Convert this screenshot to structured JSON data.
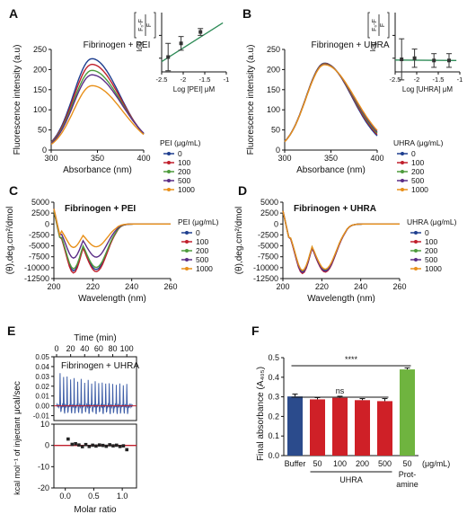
{
  "chart_data": [
    {
      "panel": "A",
      "type": "line",
      "title": "Fibrinogen + PEI",
      "xlabel": "Absorbance (nm)",
      "ylabel": "Fluorescence intensity (a.u)",
      "xlim": [
        300,
        400
      ],
      "ylim": [
        0,
        250
      ],
      "xticks": [
        300,
        350,
        400
      ],
      "yticks": [
        0,
        50,
        100,
        150,
        200,
        250
      ],
      "legend_title": "PEI (μg/mL)",
      "legend_position": "below-right",
      "peak_x": 344,
      "series": [
        {
          "name": "0",
          "color": "#1f3f8f",
          "peak": 227
        },
        {
          "name": "100",
          "color": "#c01f2c",
          "peak": 213
        },
        {
          "name": "200",
          "color": "#4d9b3c",
          "peak": 198
        },
        {
          "name": "500",
          "color": "#5a2d86",
          "peak": 187
        },
        {
          "name": "1000",
          "color": "#e8901a",
          "peak": 160
        }
      ],
      "inset": {
        "type": "scatter",
        "xlabel": "Log [PEI] μM",
        "xlim": [
          -2.5,
          -1.0
        ],
        "xticks": [
          -2.5,
          -2.0,
          -1.5,
          -1.0
        ],
        "yticks": [
          -1,
          0,
          1
        ],
        "ylabel_parts": [
          "log",
          "F₀-F",
          "F"
        ],
        "x": [
          -2.35,
          -2.05,
          -1.6
        ],
        "y": [
          -0.95,
          -0.35,
          0.15
        ],
        "err": [
          0.6,
          0.3,
          0.15
        ],
        "fit": [
          [
            -2.5,
            -1.15
          ],
          [
            -1.08,
            0.55
          ]
        ],
        "color": "#2e8b57"
      }
    },
    {
      "panel": "B",
      "type": "line",
      "title": "Fibrinogen + UHRA",
      "xlabel": "Absorbance (nm)",
      "ylabel": "Fluorescence intensity (a.u)",
      "xlim": [
        300,
        400
      ],
      "ylim": [
        0,
        250
      ],
      "xticks": [
        300,
        350,
        400
      ],
      "yticks": [
        0,
        50,
        100,
        150,
        200,
        250
      ],
      "legend_title": "UHRA (μg/mL)",
      "legend_position": "below-right",
      "peak_x": 343,
      "series": [
        {
          "name": "0",
          "color": "#1f3f8f",
          "peak": 216
        },
        {
          "name": "100",
          "color": "#c01f2c",
          "peak": 215
        },
        {
          "name": "200",
          "color": "#4d9b3c",
          "peak": 214
        },
        {
          "name": "500",
          "color": "#5a2d86",
          "peak": 213
        },
        {
          "name": "1000",
          "color": "#e8901a",
          "peak": 212
        }
      ],
      "inset": {
        "type": "scatter",
        "xlabel": "Log [UHRA] μM",
        "xlim": [
          -2.5,
          -1.0
        ],
        "xticks": [
          -2.5,
          -2.0,
          -1.5,
          -1.0
        ],
        "yticks": [
          -1,
          0,
          1
        ],
        "ylabel_parts": [
          "log",
          "F₀-F",
          "F"
        ],
        "x": [
          -2.35,
          -2.05,
          -1.6,
          -1.25
        ],
        "y": [
          -1.05,
          -1.0,
          -1.1,
          -1.1
        ],
        "err": [
          0.9,
          0.4,
          0.3,
          0.3
        ],
        "fit": [
          [
            -2.5,
            -1.08
          ],
          [
            -1.08,
            -1.1
          ]
        ],
        "color": "#2e8b57"
      }
    },
    {
      "panel": "C",
      "type": "line",
      "title": "Fibrinogen + PEI",
      "xlabel": "Wavelength (nm)",
      "ylabel": "(θ),deg.cm²/dmol",
      "xlim": [
        200,
        260
      ],
      "ylim": [
        -12500,
        5000
      ],
      "xticks": [
        200,
        220,
        240,
        260
      ],
      "yticks": [
        5000,
        2500,
        0,
        -2500,
        -5000,
        -7500,
        -10000,
        -12500
      ],
      "legend_title": "PEI (μg/mL)",
      "legend_position": "right",
      "series": [
        {
          "name": "0",
          "color": "#1f3f8f",
          "min": -11000
        },
        {
          "name": "100",
          "color": "#c01f2c",
          "min": -11500
        },
        {
          "name": "200",
          "color": "#4d9b3c",
          "min": -10500
        },
        {
          "name": "500",
          "color": "#5a2d86",
          "min": -8000
        },
        {
          "name": "1000",
          "color": "#e8901a",
          "min": -5500
        }
      ]
    },
    {
      "panel": "D",
      "type": "line",
      "title": "Fibrinogen + UHRA",
      "xlabel": "Wavelength (nm)",
      "ylabel": "(θ),deg.cm²/dmol",
      "xlim": [
        200,
        260
      ],
      "ylim": [
        -12500,
        5000
      ],
      "xticks": [
        200,
        220,
        240,
        260
      ],
      "yticks": [
        5000,
        2500,
        0,
        -2500,
        -5000,
        -7500,
        -10000,
        -12500
      ],
      "legend_title": "UHRA (μg/mL)",
      "legend_position": "right",
      "series": [
        {
          "name": "0",
          "color": "#1f3f8f",
          "min": -11200
        },
        {
          "name": "100",
          "color": "#c01f2c",
          "min": -11600
        },
        {
          "name": "200",
          "color": "#4d9b3c",
          "min": -11000
        },
        {
          "name": "500",
          "color": "#5a2d86",
          "min": -11400
        },
        {
          "name": "1000",
          "color": "#e8901a",
          "min": -10900
        }
      ]
    },
    {
      "panel": "E",
      "type": "line",
      "title": "Fibrinogen + UHRA",
      "top": {
        "xlabel": "Time (min)",
        "xlim": [
          0,
          110
        ],
        "xticks": [
          0,
          20,
          40,
          60,
          80,
          100
        ],
        "ylabel": "μcal/sec",
        "ylim": [
          -0.015,
          0.05
        ],
        "yticks": [
          0.05,
          0.04,
          0.03,
          0.02,
          0.01,
          0.0,
          -0.01
        ],
        "ytick_labels": [
          "0.05",
          "0.04",
          "0.03",
          "0.02",
          "0.01",
          "0.00",
          "-0.01"
        ],
        "injections": 20,
        "first_injection": 5,
        "injection_interval": 5,
        "spike_heights": [
          0.033,
          0.03,
          0.029,
          0.028,
          0.027,
          0.026,
          0.026,
          0.025,
          0.025,
          0.024,
          0.024,
          0.024,
          0.023,
          0.023,
          0.023,
          0.022,
          0.022,
          0.022,
          0.022,
          0.021
        ]
      },
      "bottom": {
        "xlabel": "Molar ratio",
        "xlim": [
          -0.2,
          1.25
        ],
        "xticks": [
          0.0,
          0.5,
          1.0
        ],
        "xtick_labels": [
          "0.0",
          "0.5",
          "1.0"
        ],
        "ylabel": "kcal mol⁻¹ of injectant",
        "ylim": [
          -20,
          10
        ],
        "yticks": [
          10,
          0,
          -10,
          -20
        ],
        "x": [
          0.05,
          0.12,
          0.18,
          0.24,
          0.3,
          0.36,
          0.42,
          0.48,
          0.54,
          0.6,
          0.66,
          0.72,
          0.78,
          0.84,
          0.9,
          0.96,
          1.02,
          1.08
        ],
        "y": [
          3.0,
          0.5,
          0.8,
          0.2,
          -0.6,
          0.4,
          -0.5,
          0.1,
          -0.3,
          0.2,
          0.0,
          -0.4,
          0.3,
          -0.2,
          0.1,
          -0.5,
          -0.2,
          -2.0
        ],
        "fit_y": 0
      }
    },
    {
      "panel": "F",
      "type": "bar",
      "ylabel": "Final absorbance (A₄₀₅)",
      "ylim": [
        0,
        0.5
      ],
      "yticks": [
        0.0,
        0.1,
        0.2,
        0.3,
        0.4,
        0.5
      ],
      "ytick_labels": [
        "0.0",
        "0.1",
        "0.2",
        "0.3",
        "0.4",
        "0.5"
      ],
      "categories": [
        "Buffer",
        "50",
        "100",
        "200",
        "500",
        "50"
      ],
      "values": [
        0.302,
        0.287,
        0.295,
        0.283,
        0.278,
        0.44
      ],
      "errors": [
        0.012,
        0.009,
        0.008,
        0.008,
        0.013,
        0.008
      ],
      "colors": [
        "#2b4b8c",
        "#cf2027",
        "#cf2027",
        "#cf2027",
        "#cf2027",
        "#6fb43f"
      ],
      "group_label": "UHRA",
      "extra_label_lines": [
        "Prot-",
        "amine"
      ],
      "unit_label": "(μg/mL)",
      "significance": [
        {
          "from": 0,
          "to": 5,
          "label": "****"
        },
        {
          "from": 0,
          "to": 4,
          "label": "ns"
        }
      ]
    }
  ]
}
